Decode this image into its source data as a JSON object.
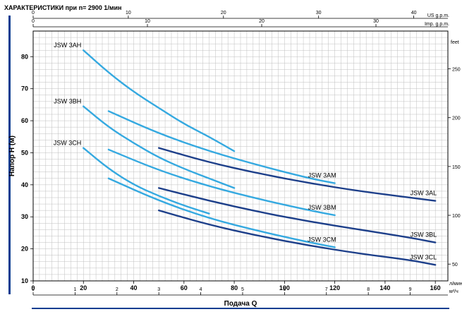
{
  "page": {
    "title": "ХАРАКТЕРИСТИКИ при n= 2900 1/мин",
    "left_accent_color": "#0a3d91"
  },
  "chart_data": {
    "type": "line",
    "title": "ХАРАКТЕРИСТИКИ при n= 2900 1/мин",
    "xlabel": "Подача Q",
    "ylabel": "Напор H (м)",
    "x_unit": "л/мин",
    "y_unit": "м",
    "xlim": [
      0,
      165
    ],
    "ylim": [
      10,
      88
    ],
    "xticks": [
      0,
      20,
      40,
      60,
      80,
      100,
      120,
      140,
      160
    ],
    "yticks": [
      10,
      20,
      30,
      40,
      50,
      60,
      70,
      80
    ],
    "grid": true,
    "secondary_axes": {
      "top_us": {
        "label": "US g.p.m.",
        "ticks": [
          0,
          10,
          20,
          30,
          40
        ],
        "factor": 0.264172
      },
      "top_imp": {
        "label": "Imp. g.p.m.",
        "ticks": [
          0,
          10,
          20,
          30
        ],
        "factor": 0.219969
      },
      "bottom_m3h": {
        "label": "м³/ч",
        "ticks": [
          0,
          1,
          2,
          3,
          4,
          5,
          6,
          7,
          8,
          9
        ],
        "factor": 0.06
      },
      "right_feet": {
        "label": "feet",
        "ticks": [
          50,
          100,
          150,
          200,
          250
        ],
        "factor": 3.28084
      }
    },
    "series": [
      {
        "name": "JSW 3AH",
        "color": "#35a9e0",
        "label_pos": "start",
        "x": [
          20,
          30,
          40,
          50,
          60,
          70,
          80
        ],
        "y": [
          82,
          75,
          69,
          64,
          59,
          55,
          50.5
        ]
      },
      {
        "name": "JSW 3BH",
        "color": "#35a9e0",
        "label_pos": "start",
        "x": [
          20,
          30,
          40,
          50,
          60,
          70,
          80
        ],
        "y": [
          64.5,
          58,
          53,
          48.5,
          45,
          42,
          39
        ]
      },
      {
        "name": "JSW 3CH",
        "color": "#35a9e0",
        "label_pos": "start",
        "x": [
          20,
          30,
          40,
          50,
          60,
          70
        ],
        "y": [
          51.5,
          45,
          40,
          36.5,
          33.5,
          31
        ]
      },
      {
        "name": "JSW 3AM",
        "color": "#35a9e0",
        "label_pos": "end",
        "x": [
          30,
          50,
          70,
          90,
          110,
          120
        ],
        "y": [
          63,
          56,
          50.5,
          46,
          42,
          40.5
        ]
      },
      {
        "name": "JSW 3BM",
        "color": "#35a9e0",
        "label_pos": "end",
        "x": [
          30,
          50,
          70,
          90,
          110,
          120
        ],
        "y": [
          51,
          44.5,
          39.5,
          35.5,
          32,
          30.5
        ]
      },
      {
        "name": "JSW 3CM",
        "color": "#35a9e0",
        "label_pos": "end",
        "x": [
          30,
          50,
          70,
          90,
          110,
          120
        ],
        "y": [
          42,
          35,
          29.5,
          25.5,
          22,
          20.5
        ]
      },
      {
        "name": "JSW 3AL",
        "color": "#1d3f8a",
        "label_pos": "end",
        "x": [
          50,
          70,
          90,
          110,
          130,
          150,
          160
        ],
        "y": [
          51.5,
          47,
          43.5,
          40.5,
          38,
          36,
          35
        ]
      },
      {
        "name": "JSW 3BL",
        "color": "#1d3f8a",
        "label_pos": "end",
        "x": [
          50,
          70,
          90,
          110,
          130,
          150,
          160
        ],
        "y": [
          39,
          35,
          31.5,
          28.5,
          26,
          23.5,
          22
        ]
      },
      {
        "name": "JSW 3CL",
        "color": "#1d3f8a",
        "label_pos": "end",
        "x": [
          50,
          70,
          90,
          110,
          130,
          150,
          160
        ],
        "y": [
          32,
          27.5,
          24,
          21,
          18.5,
          16.5,
          15
        ]
      }
    ]
  }
}
